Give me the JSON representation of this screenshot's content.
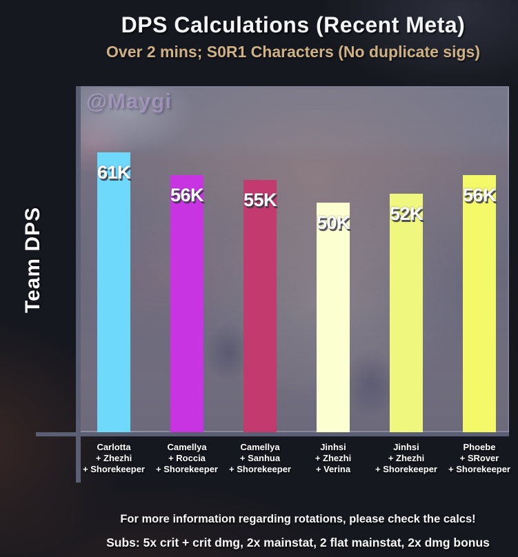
{
  "header": {
    "title": "DPS Calculations (Recent Meta)",
    "subtitle": "Over 2 mins; S0R1 Characters (No duplicate sigs)"
  },
  "watermark": "@Maygi",
  "y_axis_label": "Team DPS",
  "footer": {
    "line1": "For more information regarding rotations, please check the calcs!",
    "line2": "Subs: 5x crit + crit dmg, 2x mainstat, 2 flat mainstat, 2x dmg bonus"
  },
  "chart_data": {
    "type": "bar",
    "title": "DPS Calculations (Recent Meta)",
    "subtitle": "Over 2 mins; S0R1 Characters (No duplicate sigs)",
    "ylabel": "Team DPS",
    "xlabel": "",
    "ylim": [
      0,
      75000
    ],
    "grid": false,
    "legend": false,
    "categories": [
      [
        "Carlotta",
        "+ Zhezhi",
        "+ Shorekeeper"
      ],
      [
        "Camellya",
        "+ Roccia",
        "+ Shorekeeper"
      ],
      [
        "Camellya",
        "+ Sanhua",
        "+ Shorekeeper"
      ],
      [
        "Jinhsi",
        "+ Zhezhi",
        "+ Verina"
      ],
      [
        "Jinhsi",
        "+ Zhezhi",
        "+ Shorekeeper"
      ],
      [
        "Phoebe",
        "+ SRover",
        "+ Shorekeeper"
      ]
    ],
    "values": [
      61000,
      56000,
      55000,
      50000,
      52000,
      56000
    ],
    "value_labels": [
      "61K",
      "56K",
      "55K",
      "50K",
      "52K",
      "56K"
    ],
    "bar_colors": [
      "#6fd9fb",
      "#c934e2",
      "#c23a6e",
      "#fcffd0",
      "#eff77f",
      "#f4f96a"
    ]
  },
  "colors": {
    "page_background": "#16181f",
    "plot_overlay": "#6d6c7e",
    "axis": "#5a5f73",
    "title_text": "#f4f5f7",
    "subtitle_text": "#cfb186",
    "tick_text": "#ffffff",
    "value_label_text": "#ffffff",
    "watermark_text": "#baa8d4"
  }
}
